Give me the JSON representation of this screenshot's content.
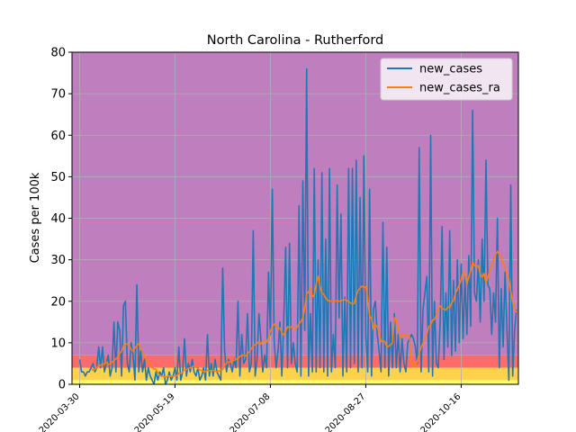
{
  "chart_data": {
    "type": "line",
    "title": "North Carolina - Rutherford",
    "xlabel": "",
    "ylabel": "Cases per 100k",
    "ylim": [
      0,
      80
    ],
    "xlim": [
      "2020-03-26",
      "2020-11-15"
    ],
    "x_ticks": [
      "2020-03-30",
      "2020-05-19",
      "2020-07-08",
      "2020-08-27",
      "2020-10-16"
    ],
    "y_ticks": [
      0,
      10,
      20,
      30,
      40,
      50,
      60,
      70,
      80
    ],
    "grid": true,
    "legend": "top-right",
    "bands": [
      {
        "from": 0,
        "to": 1,
        "color": "#ffff66"
      },
      {
        "from": 1,
        "to": 4,
        "color": "#ffd24d"
      },
      {
        "from": 4,
        "to": 7,
        "color": "#ff6b6b"
      },
      {
        "from": 7,
        "to": 80,
        "color": "#bf7fbf"
      }
    ],
    "start_date": "2020-03-30",
    "series": [
      {
        "name": "new_cases",
        "color": "#1f77b4",
        "values": [
          6,
          3,
          3,
          2,
          3,
          3,
          4,
          5,
          3,
          4,
          9,
          4,
          9,
          3,
          5,
          7,
          2,
          4,
          15,
          3,
          15,
          13,
          2,
          19,
          20,
          5,
          3,
          10,
          7,
          1,
          24,
          3,
          8,
          3,
          6,
          1,
          4,
          2,
          1,
          0,
          3,
          1,
          3,
          2,
          4,
          0,
          1,
          3,
          1,
          2,
          4,
          1,
          9,
          1,
          3,
          11,
          2,
          5,
          3,
          6,
          3,
          2,
          4,
          1,
          2,
          4,
          1,
          12,
          2,
          5,
          2,
          6,
          3,
          2,
          1,
          28,
          8,
          3,
          6,
          5,
          3,
          6,
          4,
          20,
          2,
          12,
          5,
          6,
          17,
          3,
          5,
          37,
          2,
          6,
          17,
          11,
          3,
          7,
          4,
          27,
          12,
          47,
          10,
          4,
          8,
          15,
          2,
          15,
          33,
          4,
          34,
          5,
          10,
          5,
          3,
          43,
          2,
          49,
          13,
          76,
          2,
          17,
          3,
          52,
          3,
          30,
          4,
          51,
          3,
          35,
          2,
          52,
          3,
          12,
          4,
          48,
          16,
          41,
          2,
          21,
          3,
          52,
          4,
          52,
          5,
          54,
          3,
          45,
          4,
          55,
          12,
          3,
          47,
          2,
          18,
          20,
          12,
          8,
          3,
          39,
          4,
          33,
          2,
          15,
          4,
          17,
          4,
          12,
          3,
          11,
          5,
          3,
          10,
          11,
          12,
          11,
          9,
          5,
          57,
          3,
          18,
          22,
          26,
          3,
          60,
          2,
          20,
          5,
          4,
          15,
          38,
          6,
          22,
          9,
          37,
          7,
          25,
          8,
          30,
          10,
          29,
          11,
          26,
          12,
          31,
          14,
          66,
          22,
          20,
          30,
          15,
          35,
          20,
          54,
          24,
          23,
          12,
          22,
          15,
          40,
          4,
          23,
          9,
          27,
          13,
          1,
          48,
          2,
          13,
          18
        ]
      },
      {
        "name": "new_cases_ra",
        "color": "#ff7f0e",
        "values": [
          null,
          null,
          null,
          null,
          null,
          null,
          3.7,
          3.4,
          3.6,
          4.1,
          4.4,
          4.6,
          4.9,
          4.9,
          5.3,
          4.8,
          4.9,
          5.3,
          5.7,
          6.1,
          6.7,
          7.4,
          8.0,
          9.2,
          9.9,
          9.6,
          9.3,
          8.4,
          8.0,
          8.7,
          9.4,
          9.8,
          8.6,
          7.9,
          6.9,
          5.8,
          5.4,
          4.7,
          4.0,
          3.7,
          3.6,
          2.8,
          2.1,
          2.0,
          1.9,
          1.7,
          1.9,
          2.0,
          2.0,
          1.9,
          2.1,
          2.0,
          2.7,
          2.6,
          2.8,
          3.6,
          3.5,
          3.9,
          3.9,
          4.2,
          4.4,
          4.1,
          3.8,
          3.5,
          3.3,
          3.1,
          3.0,
          3.4,
          3.3,
          3.3,
          3.3,
          3.2,
          3.1,
          3.2,
          3.3,
          3.6,
          4.5,
          5.1,
          5.4,
          5.4,
          5.6,
          5.8,
          6.0,
          6.3,
          6.7,
          7.0,
          7.0,
          6.8,
          7.3,
          7.9,
          8.6,
          9.2,
          9.6,
          9.8,
          10.3,
          9.7,
          10.5,
          10.2,
          10.1,
          11.3,
          12.9,
          13.8,
          14.5,
          14.1,
          13.3,
          13.6,
          12.4,
          11.9,
          12.8,
          13.9,
          13.6,
          13.9,
          13.3,
          13.4,
          13.8,
          14.6,
          15.1,
          16.0,
          18.4,
          21.7,
          22.2,
          23.3,
          21.1,
          21.5,
          24.2,
          26.0,
          23.6,
          22.0,
          21.6,
          20.8,
          20.2,
          20.0,
          20.1,
          19.9,
          20.0,
          20.2,
          20.0,
          20.1,
          20.3,
          20.4,
          20.2,
          19.9,
          19.6,
          19.3,
          19.5,
          21.4,
          22.6,
          23.2,
          23.7,
          23.3,
          23.5,
          20.6,
          16.5,
          15.9,
          13.3,
          14.3,
          13.9,
          12.5,
          10.3,
          10.5,
          10.3,
          9.0,
          9.2,
          9.5,
          10.0,
          16.0,
          15.5,
          13.8,
          11.0,
          11.5,
          12.1,
          11.6,
          11.9,
          11.3,
          5.2,
          4.3,
          4.3,
          5.6,
          7.5,
          8.9,
          9.9,
          11.1,
          12.1,
          13.9,
          14.3,
          15.5,
          15.6,
          16.7,
          18.4,
          18.9,
          18.2,
          18.1,
          17.9,
          18.6,
          18.5,
          19.6,
          20.2,
          21.9,
          22.9,
          24.0,
          25.1,
          27.2,
          26.4,
          24.1,
          25.9,
          27.3,
          29.5,
          28.6,
          28.2,
          28.6,
          26.5,
          25.8,
          26.7,
          24.3,
          25.9,
          27.5,
          28.6,
          29.9,
          31.2,
          32.0,
          31.3,
          30.5,
          29.0,
          28.3,
          26.5,
          25.3,
          22.4,
          19.8,
          18.0,
          17.5,
          17.2,
          16.8,
          16.4,
          16.0,
          16.4,
          16.7,
          13.1,
          18.4,
          17.6,
          16.9
        ]
      }
    ]
  }
}
